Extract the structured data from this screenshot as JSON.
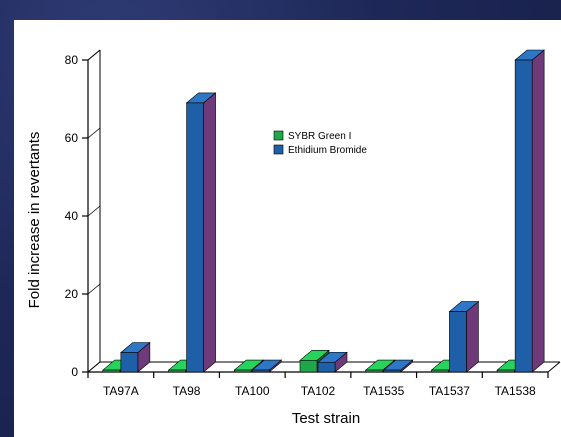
{
  "chart_data": {
    "type": "bar",
    "categories": [
      "TA97A",
      "TA98",
      "TA100",
      "TA102",
      "TA1535",
      "TA1537",
      "TA1538"
    ],
    "series": [
      {
        "name": "SYBR Green I",
        "values": [
          0.5,
          0.5,
          0.5,
          3,
          0.5,
          0.5,
          0.5
        ],
        "color": "#1fa84a"
      },
      {
        "name": "Ethidium Bromide",
        "values": [
          5,
          69,
          0.5,
          2.5,
          0.5,
          15.5,
          80
        ],
        "color": "#1f5fa8"
      }
    ],
    "xlabel": "Test strain",
    "ylabel": "Fold increase in revertants",
    "ylim": [
      0,
      80
    ],
    "yticks": [
      0,
      20,
      40,
      60,
      80
    ],
    "legend_position": "top-center",
    "grid": false,
    "side_color": "#6e3a7a",
    "top_highlight": "#2d77c6"
  }
}
